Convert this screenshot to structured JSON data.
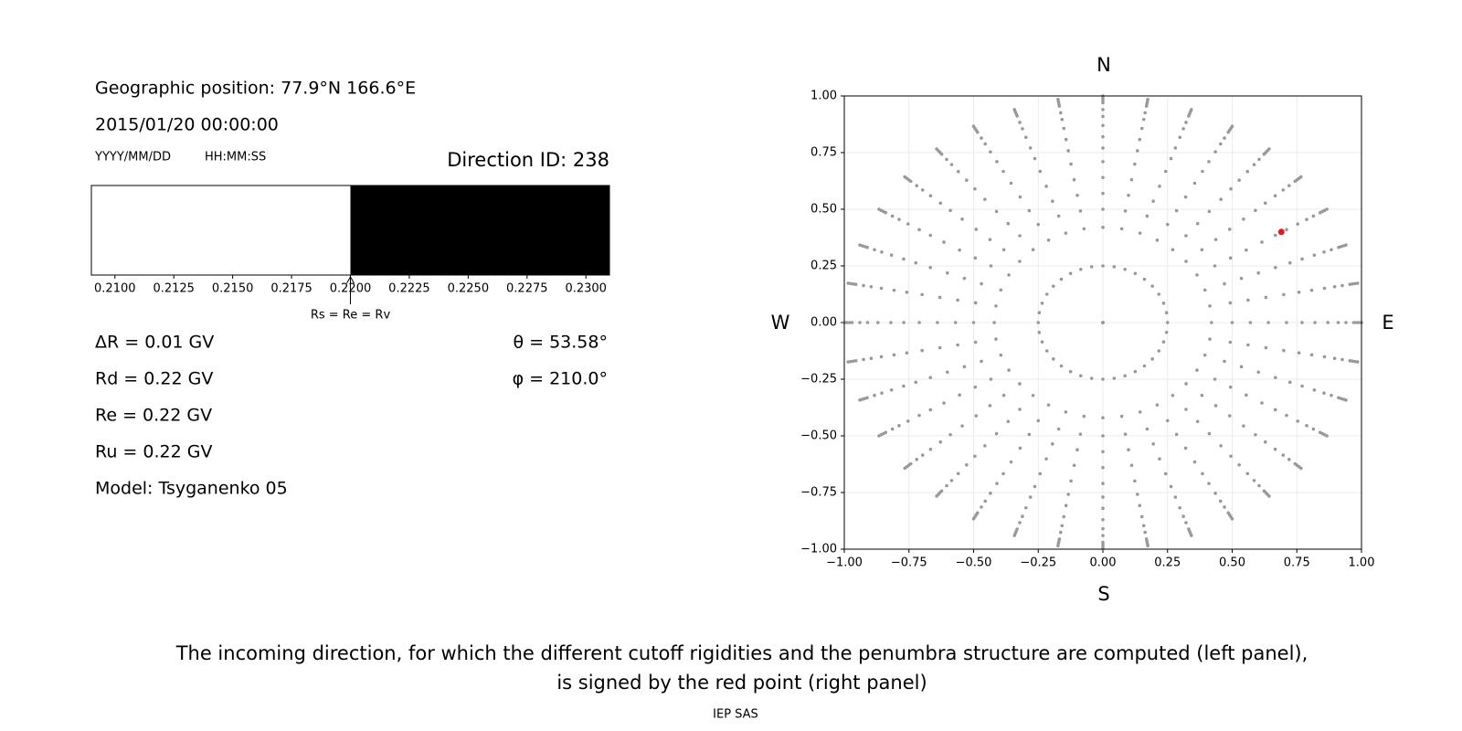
{
  "info": {
    "position": "Geographic position: 77.9°N 166.6°E",
    "datetime": "2015/01/20 00:00:00",
    "date_format": "YYYY/MM/DD",
    "time_format": "HH:MM:SS",
    "direction": "Direction ID: 238",
    "left_lines": [
      "ΔR = 0.01 GV",
      "Rd = 0.22 GV",
      "Re = 0.22 GV",
      "Ru = 0.22 GV",
      "Model: Tsyganenko 05"
    ],
    "right_lines": [
      "θ = 53.58°",
      "φ = 210.0°"
    ]
  },
  "chart_data": [
    {
      "type": "penumbra",
      "edges": [
        0.209,
        0.22,
        0.231
      ],
      "colors": [
        "#ffffff",
        "#000000"
      ],
      "xlim": [
        0.209,
        0.231
      ],
      "xticks": [
        {
          "value": 0.21,
          "label": "0.2100"
        },
        {
          "value": 0.2125,
          "label": "0.2125"
        },
        {
          "value": 0.215,
          "label": "0.2150"
        },
        {
          "value": 0.2175,
          "label": "0.2175"
        },
        {
          "value": 0.22,
          "label": "0.2200"
        },
        {
          "value": 0.2225,
          "label": "0.2225"
        },
        {
          "value": 0.225,
          "label": "0.2250"
        },
        {
          "value": 0.2275,
          "label": "0.2275"
        },
        {
          "value": 0.23,
          "label": "0.2300"
        }
      ],
      "annotation": {
        "text": "Rs = Re = Rv",
        "x": 0.22
      }
    },
    {
      "type": "polar-scatter",
      "points": {
        "r": [
          0,
          0.25,
          0.42,
          0.5,
          0.57,
          0.64,
          0.71,
          0.77,
          0.82,
          0.87,
          0.91,
          0.94,
          0.97,
          0.98,
          0.99,
          1.0
        ],
        "azimuth": [
          0,
          10,
          20,
          30,
          40,
          50,
          60,
          70,
          80,
          90,
          100,
          110,
          120,
          130,
          140,
          150,
          160,
          170,
          180,
          190,
          200,
          210,
          220,
          230,
          240,
          250,
          260,
          270,
          280,
          290,
          300,
          310,
          320,
          330,
          340,
          350
        ],
        "color": "#999999"
      },
      "highlight": {
        "x": 0.69,
        "y": 0.4,
        "color": "#e41a1c"
      },
      "xlim": [
        -1,
        1
      ],
      "ylim": [
        -1,
        1
      ],
      "grid": true,
      "xticks": [
        {
          "value": -1,
          "label": "−1.00"
        },
        {
          "value": -0.75,
          "label": "−0.75"
        },
        {
          "value": -0.5,
          "label": "−0.50"
        },
        {
          "value": -0.25,
          "label": "−0.25"
        },
        {
          "value": 0,
          "label": "0.00"
        },
        {
          "value": 0.25,
          "label": "0.25"
        },
        {
          "value": 0.5,
          "label": "0.50"
        },
        {
          "value": 0.75,
          "label": "0.75"
        },
        {
          "value": 1,
          "label": "1.00"
        }
      ],
      "yticks": [
        {
          "value": -1,
          "label": "−1.00"
        },
        {
          "value": -0.75,
          "label": "−0.75"
        },
        {
          "value": -0.5,
          "label": "−0.50"
        },
        {
          "value": -0.25,
          "label": "−0.25"
        },
        {
          "value": 0,
          "label": "0.00"
        },
        {
          "value": 0.25,
          "label": "0.25"
        },
        {
          "value": 0.5,
          "label": "0.50"
        },
        {
          "value": 0.75,
          "label": "0.75"
        },
        {
          "value": 1,
          "label": "1.00"
        }
      ],
      "compass": {
        "north": "N",
        "south": "S",
        "west": "W",
        "east": "E"
      }
    }
  ],
  "caption": [
    "The incoming direction, for which the different cutoff rigidities and the penumbra structure are computed (left panel),",
    "is signed by the red point (right panel)"
  ],
  "footer": "IEP SAS"
}
